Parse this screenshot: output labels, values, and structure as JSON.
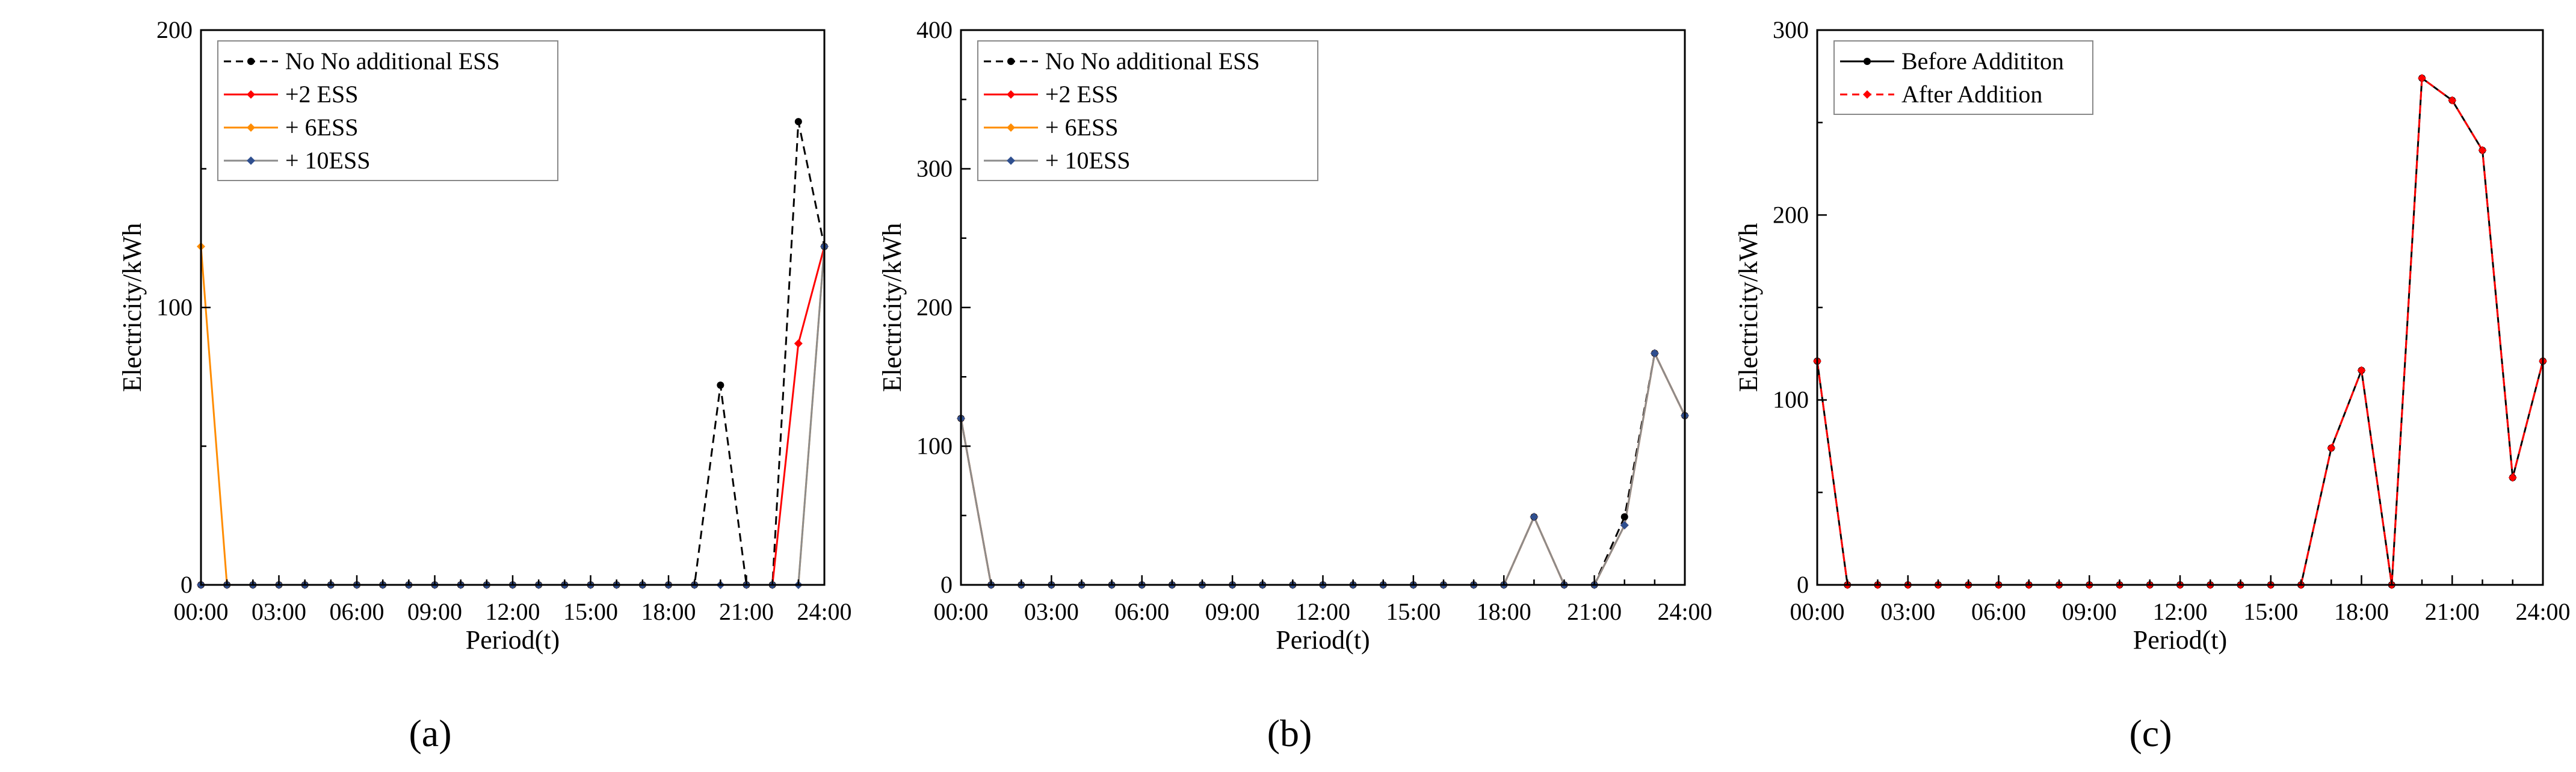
{
  "chart_data": [
    {
      "panel_label": "(a)",
      "type": "line",
      "xlabel": "Period(t)",
      "ylabel": "Electricity/kWh",
      "xlim": [
        0,
        24
      ],
      "ylim": [
        0,
        200
      ],
      "x_tick_labels": [
        "00:00",
        "03:00",
        "06:00",
        "09:00",
        "12:00",
        "15:00",
        "18:00",
        "21:00",
        "24:00"
      ],
      "y_ticks": [
        0,
        100,
        200
      ],
      "legend_position": "top-left",
      "x": [
        0,
        1,
        2,
        3,
        4,
        5,
        6,
        7,
        8,
        9,
        10,
        11,
        12,
        13,
        14,
        15,
        16,
        17,
        18,
        19,
        20,
        21,
        22,
        23,
        24
      ],
      "series": [
        {
          "name": "No No additional ESS",
          "color": "#000000",
          "dash": true,
          "marker": "circle",
          "values": [
            0,
            0,
            0,
            0,
            0,
            0,
            0,
            0,
            0,
            0,
            0,
            0,
            0,
            0,
            0,
            0,
            0,
            0,
            0,
            0,
            72,
            0,
            0,
            167,
            122
          ]
        },
        {
          "name": "+2 ESS",
          "color": "#ff0000",
          "dash": false,
          "marker": "diamond",
          "values": [
            0,
            0,
            0,
            0,
            0,
            0,
            0,
            0,
            0,
            0,
            0,
            0,
            0,
            0,
            0,
            0,
            0,
            0,
            0,
            0,
            0,
            0,
            0,
            87,
            122
          ]
        },
        {
          "name": "+ 6ESS",
          "color": "#ff8c00",
          "dash": false,
          "marker": "diamond",
          "values": [
            122,
            0,
            0,
            0,
            0,
            0,
            0,
            0,
            0,
            0,
            0,
            0,
            0,
            0,
            0,
            0,
            0,
            0,
            0,
            0,
            0,
            0,
            0,
            0,
            122
          ]
        },
        {
          "name": "+ 10ESS",
          "color": "#8c8c8c",
          "dash": false,
          "marker": "diamond",
          "marker_color": "#2f4f8f",
          "values": [
            0,
            0,
            0,
            0,
            0,
            0,
            0,
            0,
            0,
            0,
            0,
            0,
            0,
            0,
            0,
            0,
            0,
            0,
            0,
            0,
            0,
            0,
            0,
            0,
            122
          ]
        }
      ]
    },
    {
      "panel_label": "(b)",
      "type": "line",
      "xlabel": "Period(t)",
      "ylabel": "Electricity/kWh",
      "xlim": [
        0,
        24
      ],
      "ylim": [
        0,
        400
      ],
      "x_tick_labels": [
        "00:00",
        "03:00",
        "06:00",
        "09:00",
        "12:00",
        "15:00",
        "18:00",
        "21:00",
        "24:00"
      ],
      "y_ticks": [
        0,
        100,
        200,
        300,
        400
      ],
      "legend_position": "top-left",
      "x": [
        0,
        1,
        2,
        3,
        4,
        5,
        6,
        7,
        8,
        9,
        10,
        11,
        12,
        13,
        14,
        15,
        16,
        17,
        18,
        19,
        20,
        21,
        22,
        23,
        24
      ],
      "series": [
        {
          "name": "No No additional ESS",
          "color": "#000000",
          "dash": true,
          "marker": "circle",
          "values": [
            120,
            0,
            0,
            0,
            0,
            0,
            0,
            0,
            0,
            0,
            0,
            0,
            0,
            0,
            0,
            0,
            0,
            0,
            0,
            49,
            0,
            0,
            49,
            167,
            122
          ]
        },
        {
          "name": "+2 ESS",
          "color": "#ff0000",
          "dash": false,
          "marker": "diamond",
          "values": [
            120,
            0,
            0,
            0,
            0,
            0,
            0,
            0,
            0,
            0,
            0,
            0,
            0,
            0,
            0,
            0,
            0,
            0,
            0,
            49,
            0,
            0,
            43,
            167,
            122
          ]
        },
        {
          "name": "+ 6ESS",
          "color": "#ff8c00",
          "dash": false,
          "marker": "diamond",
          "values": [
            120,
            0,
            0,
            0,
            0,
            0,
            0,
            0,
            0,
            0,
            0,
            0,
            0,
            0,
            0,
            0,
            0,
            0,
            0,
            49,
            0,
            0,
            43,
            167,
            122
          ]
        },
        {
          "name": "+ 10ESS",
          "color": "#8c8c8c",
          "dash": false,
          "marker": "diamond",
          "marker_color": "#2f4f8f",
          "values": [
            120,
            0,
            0,
            0,
            0,
            0,
            0,
            0,
            0,
            0,
            0,
            0,
            0,
            0,
            0,
            0,
            0,
            0,
            0,
            49,
            0,
            0,
            43,
            167,
            122
          ]
        }
      ]
    },
    {
      "panel_label": "(c)",
      "type": "line",
      "xlabel": "Period(t)",
      "ylabel": "Electricity/kWh",
      "xlim": [
        0,
        24
      ],
      "ylim": [
        0,
        300
      ],
      "x_tick_labels": [
        "00:00",
        "03:00",
        "06:00",
        "09:00",
        "12:00",
        "15:00",
        "18:00",
        "21:00",
        "24:00"
      ],
      "y_ticks": [
        0,
        100,
        200,
        300
      ],
      "legend_position": "top-left",
      "x": [
        0,
        1,
        2,
        3,
        4,
        5,
        6,
        7,
        8,
        9,
        10,
        11,
        12,
        13,
        14,
        15,
        16,
        17,
        18,
        19,
        20,
        21,
        22,
        23,
        24
      ],
      "series": [
        {
          "name": "Before Addititon",
          "color": "#000000",
          "dash": false,
          "marker": "circle",
          "values": [
            121,
            0,
            0,
            0,
            0,
            0,
            0,
            0,
            0,
            0,
            0,
            0,
            0,
            0,
            0,
            0,
            0,
            74,
            116,
            0,
            274,
            262,
            235,
            58,
            121
          ]
        },
        {
          "name": "After Addition",
          "color": "#ff0000",
          "dash": true,
          "marker": "diamond",
          "values": [
            121,
            0,
            0,
            0,
            0,
            0,
            0,
            0,
            0,
            0,
            0,
            0,
            0,
            0,
            0,
            0,
            0,
            74,
            116,
            0,
            274,
            262,
            235,
            58,
            121
          ]
        }
      ]
    }
  ]
}
